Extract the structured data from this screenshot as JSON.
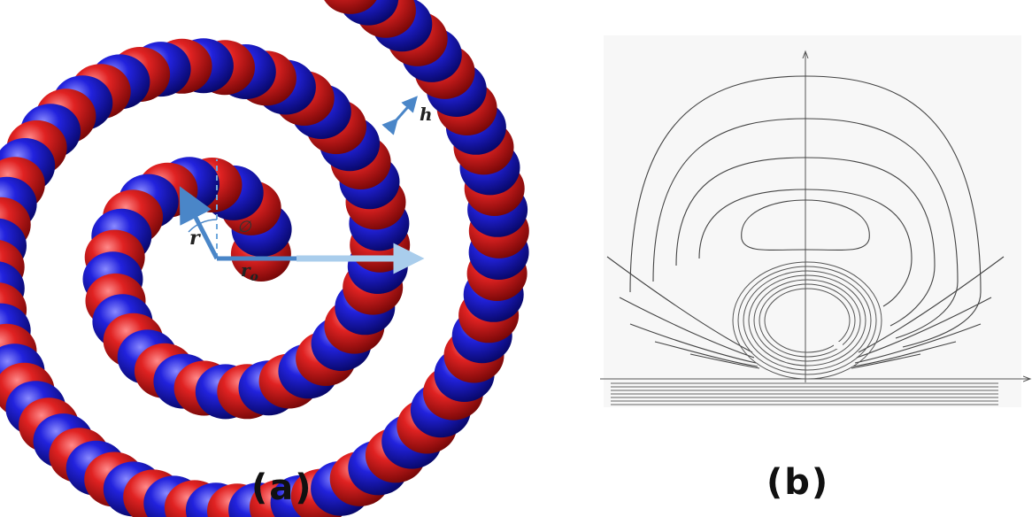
{
  "captions": {
    "a": "(a)",
    "b": "(b)"
  },
  "panel_a": {
    "labels": {
      "r": "r",
      "r0": "r",
      "r0_sub": "o",
      "phi": "∅",
      "h": "h"
    },
    "colors": {
      "red_bead": "#c41515",
      "blue_bead": "#1414b4",
      "arrow_dark": "#4a86c8",
      "arrow_light": "#a9cdec"
    }
  },
  "panel_b": {
    "colors": {
      "contour": "#444444",
      "axis": "#555555",
      "background": "#f7f7f7"
    }
  }
}
